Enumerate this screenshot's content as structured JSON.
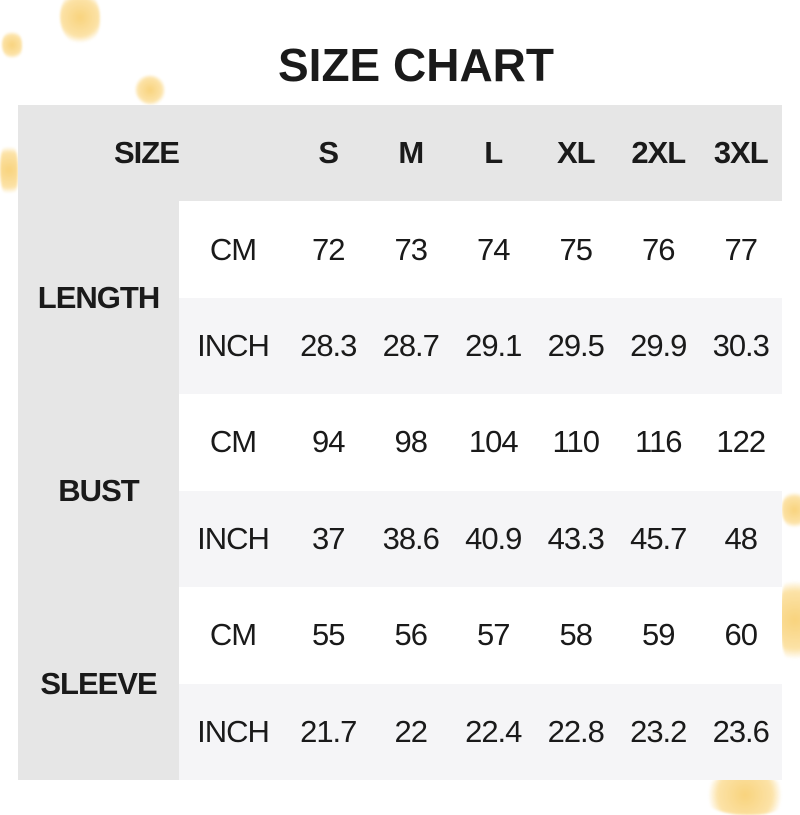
{
  "title": "SIZE CHART",
  "header": {
    "label": "SIZE",
    "sizes": [
      "S",
      "M",
      "L",
      "XL",
      "2XL",
      "3XL"
    ]
  },
  "rows": [
    {
      "measure": "LENGTH",
      "cm": {
        "unit": "CM",
        "values": [
          "72",
          "73",
          "74",
          "75",
          "76",
          "77"
        ]
      },
      "inch": {
        "unit": "INCH",
        "values": [
          "28.3",
          "28.7",
          "29.1",
          "29.5",
          "29.9",
          "30.3"
        ]
      }
    },
    {
      "measure": "BUST",
      "cm": {
        "unit": "CM",
        "values": [
          "94",
          "98",
          "104",
          "110",
          "116",
          "122"
        ]
      },
      "inch": {
        "unit": "INCH",
        "values": [
          "37",
          "38.6",
          "40.9",
          "43.3",
          "45.7",
          "48"
        ]
      }
    },
    {
      "measure": "SLEEVE",
      "cm": {
        "unit": "CM",
        "values": [
          "55",
          "56",
          "57",
          "58",
          "59",
          "60"
        ]
      },
      "inch": {
        "unit": "INCH",
        "values": [
          "21.7",
          "22",
          "22.4",
          "22.8",
          "23.2",
          "23.6"
        ]
      }
    }
  ],
  "colors": {
    "header_bg": "#e6e6e6",
    "alt_row_bg": "#f5f5f7",
    "text": "#1a1a1a",
    "leaf": "#f7c552"
  }
}
